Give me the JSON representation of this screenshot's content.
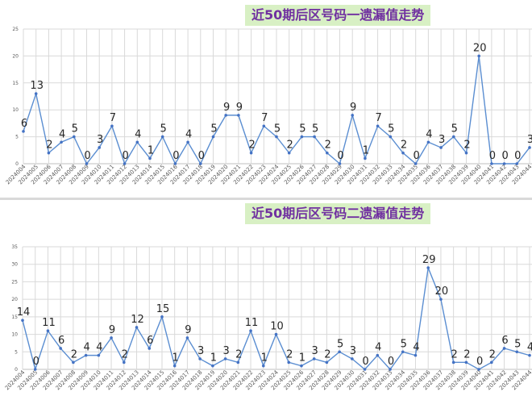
{
  "chart_data": [
    {
      "type": "line",
      "title": "近50期后区号码一遗漏值走势",
      "ylim": [
        0,
        25
      ],
      "yticks": [
        0,
        5,
        10,
        15,
        20,
        25
      ],
      "grid": true,
      "line_color": "#5b8ed1",
      "marker_color": "#4472c4",
      "title_bg": "#d8f0c4",
      "title_color": "#7030a0",
      "categories": [
        "2024004",
        "2024005",
        "2024006",
        "2024007",
        "2024008",
        "2024009",
        "2024010",
        "2024011",
        "2024012",
        "2024013",
        "2024014",
        "2024015",
        "2024016",
        "2024017",
        "2024018",
        "2024019",
        "2024020",
        "2024021",
        "2024022",
        "2024023",
        "2024024",
        "2024025",
        "2024026",
        "2024027",
        "2024028",
        "2024029",
        "2024030",
        "2024031",
        "2024032",
        "2024033",
        "2024034",
        "2024035",
        "2024036",
        "2024037",
        "2024038",
        "2024039",
        "2024040",
        "2024041",
        "2024042",
        "2024043",
        "2024044"
      ],
      "series": [
        {
          "values": [
            6,
            13,
            2,
            4,
            5,
            0,
            3,
            7,
            0,
            4,
            1,
            5,
            0,
            4,
            0,
            5,
            9,
            9,
            2,
            7,
            5,
            2,
            5,
            5,
            2,
            0,
            9,
            1,
            7,
            5,
            2,
            0,
            4,
            3,
            5,
            2,
            20,
            0,
            0,
            0,
            3
          ]
        }
      ]
    },
    {
      "type": "line",
      "title": "近50期后区号码二遗漏值走势",
      "ylim": [
        0,
        35
      ],
      "yticks": [
        0,
        5,
        10,
        15,
        20,
        25,
        30,
        35
      ],
      "grid": true,
      "line_color": "#5b8ed1",
      "marker_color": "#4472c4",
      "title_bg": "#d8f0c4",
      "title_color": "#7030a0",
      "categories": [
        "2024004",
        "2024005",
        "2024006",
        "2024007",
        "2024008",
        "2024009",
        "2024010",
        "2024011",
        "2024012",
        "2024013",
        "2024014",
        "2024015",
        "2024016",
        "2024017",
        "2024018",
        "2024019",
        "2024020",
        "2024021",
        "2024022",
        "2024023",
        "2024024",
        "2024025",
        "2024026",
        "2024027",
        "2024028",
        "2024029",
        "2024030",
        "2024031",
        "2024032",
        "2024033",
        "2024034",
        "2024035",
        "2024036",
        "2024037",
        "2024038",
        "2024039",
        "2024040",
        "2024041",
        "2024042",
        "2024043",
        "2024044"
      ],
      "series": [
        {
          "values": [
            14,
            0,
            11,
            6,
            2,
            4,
            4,
            9,
            2,
            12,
            6,
            15,
            1,
            9,
            3,
            1,
            3,
            2,
            11,
            1,
            10,
            2,
            1,
            3,
            2,
            5,
            3,
            0,
            4,
            0,
            5,
            4,
            29,
            20,
            2,
            2,
            0,
            2,
            6,
            5,
            4
          ]
        }
      ]
    }
  ]
}
